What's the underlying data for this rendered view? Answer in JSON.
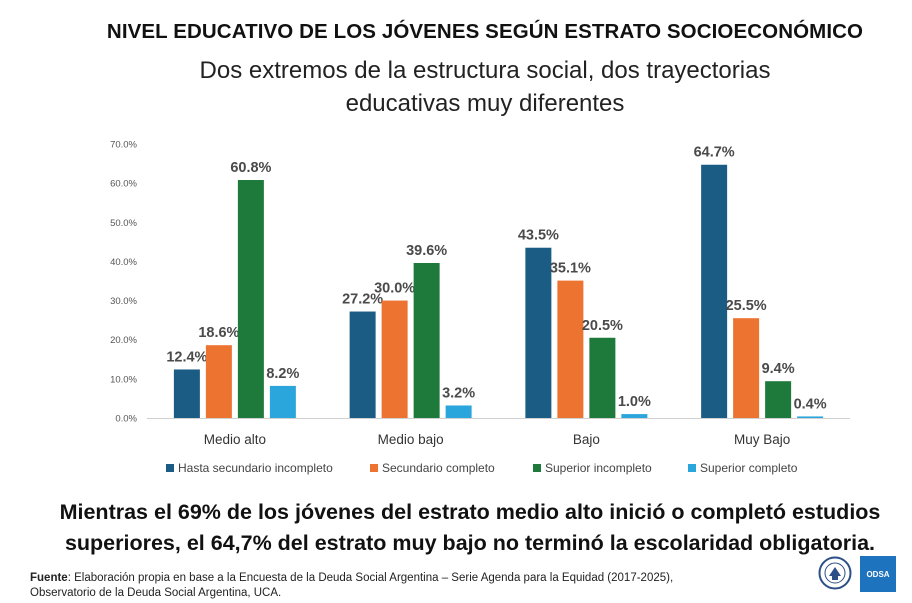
{
  "header": {
    "title": "NIVEL EDUCATIVO DE LOS JÓVENES SEGÚN ESTRATO SOCIOECONÓMICO",
    "subtitle_line1": "Dos extremos de la estructura social, dos trayectorias",
    "subtitle_line2": "educativas muy diferentes"
  },
  "chart_data": {
    "type": "bar",
    "categories": [
      "Medio alto",
      "Medio bajo",
      "Bajo",
      "Muy Bajo"
    ],
    "series": [
      {
        "name": "Hasta secundario incompleto",
        "color": "#1b5c84",
        "values": [
          12.4,
          27.2,
          43.5,
          64.7
        ]
      },
      {
        "name": "Secundario completo",
        "color": "#ec7330",
        "values": [
          18.6,
          30.0,
          35.1,
          25.5
        ]
      },
      {
        "name": "Superior incompleto",
        "color": "#1e7a3a",
        "values": [
          60.8,
          39.6,
          20.5,
          9.4
        ]
      },
      {
        "name": "Superior completo",
        "color": "#2aa6dc",
        "values": [
          8.2,
          3.2,
          1.0,
          0.4
        ]
      }
    ],
    "ylim": [
      0,
      70
    ],
    "yticks": [
      "0.0%",
      "10.0%",
      "20.0%",
      "30.0%",
      "40.0%",
      "50.0%",
      "60.0%",
      "70.0%"
    ],
    "value_suffix": "%",
    "legend_position": "bottom",
    "grid": false
  },
  "conclusion": {
    "line1": "Mientras el 69% de los jóvenes del estrato medio alto inició o completó estudios",
    "line2": "superiores, el 64,7% del estrato muy bajo no terminó la escolaridad obligatoria."
  },
  "source": {
    "label": "Fuente",
    "line1": ": Elaboración propia en base a la Encuesta de la Deuda Social Argentina – Serie Agenda para la Equidad (2017-2025),",
    "line2": "Observatorio de la Deuda Social Argentina, UCA."
  },
  "logos": {
    "left": "uca-seal-icon",
    "right_text": "ODSA"
  }
}
